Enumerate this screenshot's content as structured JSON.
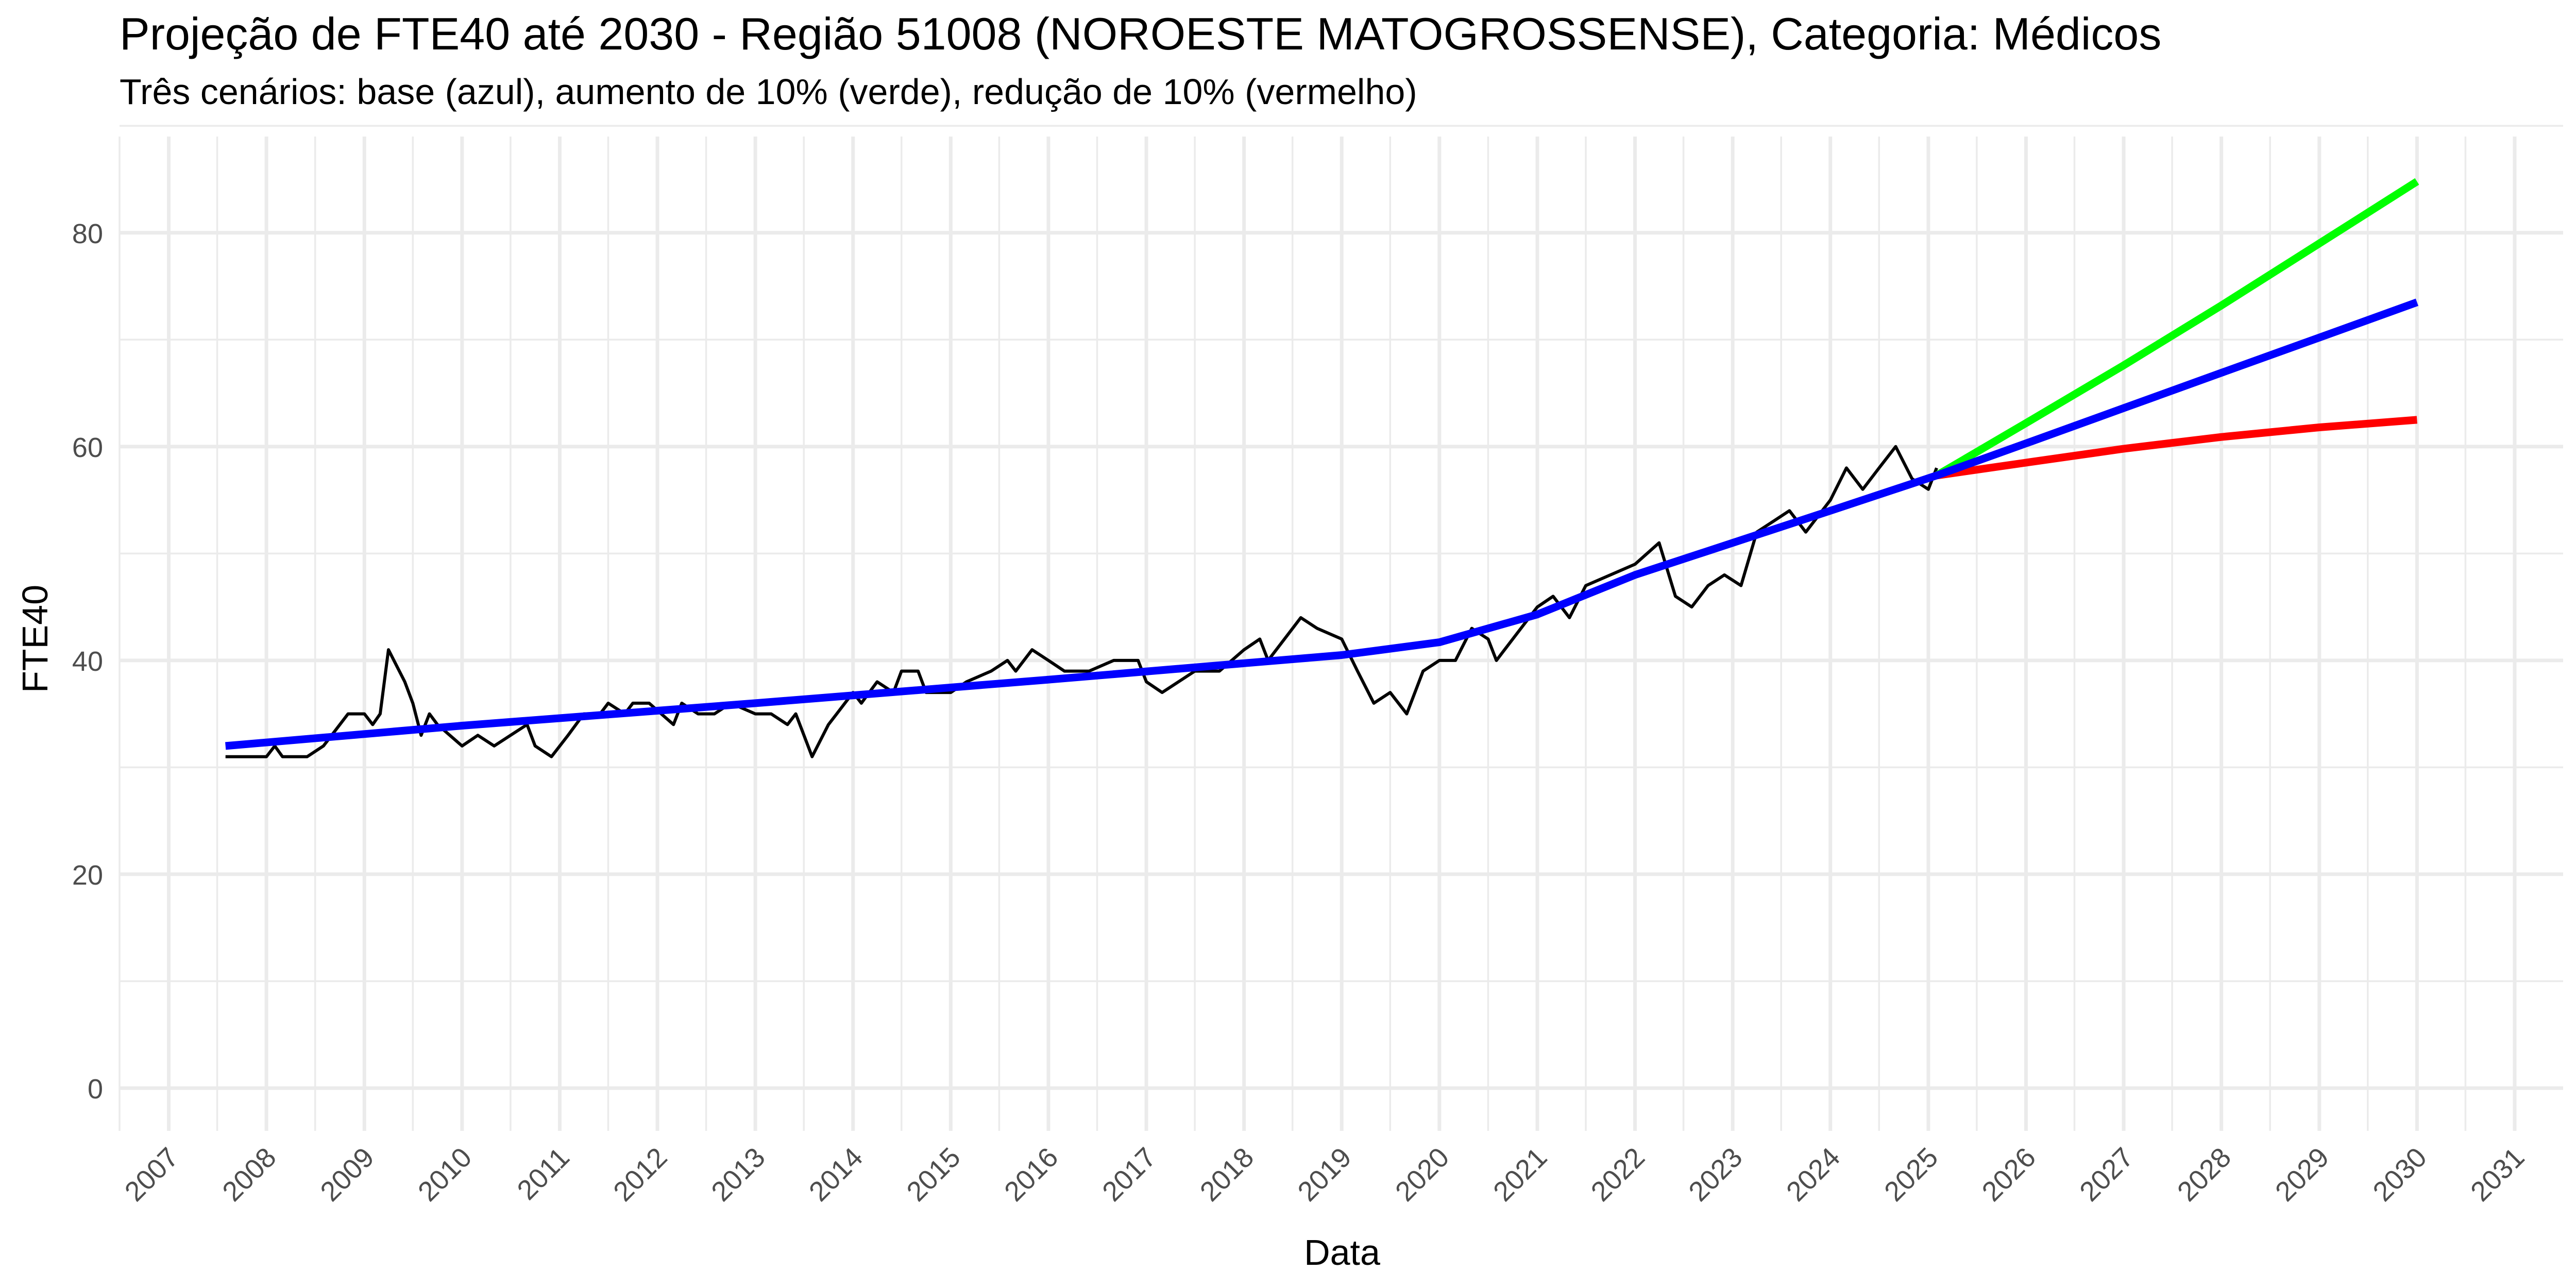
{
  "chart_data": {
    "type": "line",
    "title": "Projeção de FTE40 até 2030 - Região 51008 (NOROESTE MATOGROSSENSE), Categoria: Médicos",
    "subtitle": "Três cenários: base (azul), aumento de 10% (verde), redução de 10% (vermelho)",
    "xlabel": "Data",
    "ylabel": "FTE40",
    "x_type": "date",
    "xlim": [
      "2006-07-01",
      "2031-07-01"
    ],
    "ylim": [
      -4,
      89
    ],
    "x_ticks": [
      "2007",
      "2008",
      "2009",
      "2010",
      "2011",
      "2012",
      "2013",
      "2014",
      "2015",
      "2016",
      "2017",
      "2018",
      "2019",
      "2020",
      "2021",
      "2022",
      "2023",
      "2024",
      "2025",
      "2026",
      "2027",
      "2028",
      "2029",
      "2030",
      "2031"
    ],
    "y_ticks": [
      "0",
      "20",
      "40",
      "60",
      "80"
    ],
    "grid": true,
    "legend": "none",
    "colors": {
      "observed": "#000000",
      "base": "#0000ff",
      "aumento": "#00ff00",
      "reducao": "#ff0000",
      "grid": "#ebebeb"
    },
    "series": [
      {
        "key": "observed",
        "x": [
          "2007-08-01",
          "2007-10-01",
          "2008-01-01",
          "2008-02-01",
          "2008-03-01",
          "2008-06-01",
          "2008-08-01",
          "2008-11-01",
          "2009-01-01",
          "2009-02-01",
          "2009-03-01",
          "2009-04-01",
          "2009-06-01",
          "2009-07-01",
          "2009-08-01",
          "2009-09-01",
          "2009-10-01",
          "2010-01-01",
          "2010-03-01",
          "2010-05-01",
          "2010-07-01",
          "2010-09-01",
          "2010-10-01",
          "2010-12-01",
          "2011-02-01",
          "2011-04-01",
          "2011-06-01",
          "2011-07-01",
          "2011-09-01",
          "2011-10-01",
          "2011-12-01",
          "2012-03-01",
          "2012-04-01",
          "2012-06-01",
          "2012-08-01",
          "2012-10-01",
          "2013-01-01",
          "2013-03-01",
          "2013-05-01",
          "2013-06-01",
          "2013-08-01",
          "2013-10-01",
          "2013-11-01",
          "2014-01-01",
          "2014-02-01",
          "2014-04-01",
          "2014-06-01",
          "2014-07-01",
          "2014-09-01",
          "2014-10-01",
          "2015-01-01",
          "2015-03-01",
          "2015-06-01",
          "2015-08-01",
          "2015-09-01",
          "2015-11-01",
          "2016-01-01",
          "2016-03-01",
          "2016-06-01",
          "2016-09-01",
          "2016-12-01",
          "2017-01-01",
          "2017-03-01",
          "2017-05-01",
          "2017-07-01",
          "2017-10-01",
          "2018-01-01",
          "2018-03-01",
          "2018-04-01",
          "2018-06-01",
          "2018-08-01",
          "2018-10-01",
          "2019-01-01",
          "2019-03-01",
          "2019-05-01",
          "2019-07-01",
          "2019-09-01",
          "2019-11-01",
          "2020-01-01",
          "2020-03-01",
          "2020-05-01",
          "2020-07-01",
          "2020-08-01",
          "2020-10-01",
          "2021-01-01",
          "2021-03-01",
          "2021-05-01",
          "2021-07-01",
          "2021-10-01",
          "2022-01-01",
          "2022-04-01",
          "2022-06-01",
          "2022-08-01",
          "2022-10-01",
          "2022-12-01",
          "2023-02-01",
          "2023-04-01",
          "2023-06-01",
          "2023-08-01",
          "2023-10-01",
          "2024-01-01",
          "2024-03-01",
          "2024-05-01",
          "2024-07-01",
          "2024-09-01",
          "2024-11-01",
          "2025-01-01",
          "2025-02-01"
        ],
        "y": [
          31,
          31,
          31,
          32,
          31,
          31,
          32,
          35,
          35,
          34,
          35,
          41,
          38,
          36,
          33,
          35,
          34,
          32,
          33,
          32,
          33,
          34,
          32,
          31,
          33,
          35,
          35,
          36,
          35,
          36,
          36,
          34,
          36,
          35,
          35,
          36,
          35,
          35,
          34,
          35,
          31,
          34,
          35,
          37,
          36,
          38,
          37,
          39,
          39,
          37,
          37,
          38,
          39,
          40,
          39,
          41,
          40,
          39,
          39,
          40,
          40,
          38,
          37,
          38,
          39,
          39,
          41,
          42,
          40,
          42,
          44,
          43,
          42,
          39,
          36,
          37,
          35,
          39,
          40,
          40,
          43,
          42,
          40,
          42,
          45,
          46,
          44,
          47,
          48,
          49,
          51,
          46,
          45,
          47,
          48,
          47,
          52,
          53,
          54,
          52,
          55,
          58,
          56,
          58,
          60,
          57,
          56,
          58
        ]
      },
      {
        "key": "base",
        "x": [
          "2007-08-01",
          "2010-01-01",
          "2013-01-01",
          "2016-01-01",
          "2019-01-01",
          "2020-01-01",
          "2021-01-01",
          "2022-01-01",
          "2023-01-01",
          "2024-01-01",
          "2025-02-01",
          "2026-01-01",
          "2027-01-01",
          "2028-01-01",
          "2029-01-01",
          "2030-01-01"
        ],
        "y": [
          32,
          33.9,
          36,
          38.2,
          40.5,
          41.7,
          44.3,
          48,
          51,
          54,
          57.3,
          60.3,
          63.6,
          66.9,
          70.2,
          73.5
        ]
      },
      {
        "key": "aumento",
        "x": [
          "2025-02-01",
          "2026-01-01",
          "2027-01-01",
          "2028-01-01",
          "2029-01-01",
          "2030-01-01"
        ],
        "y": [
          57.3,
          62.2,
          67.6,
          73.2,
          79,
          84.8
        ]
      },
      {
        "key": "reducao",
        "x": [
          "2025-02-01",
          "2026-01-01",
          "2027-01-01",
          "2028-01-01",
          "2029-01-01",
          "2030-01-01"
        ],
        "y": [
          57.3,
          58.5,
          59.8,
          60.9,
          61.8,
          62.5
        ]
      }
    ]
  }
}
